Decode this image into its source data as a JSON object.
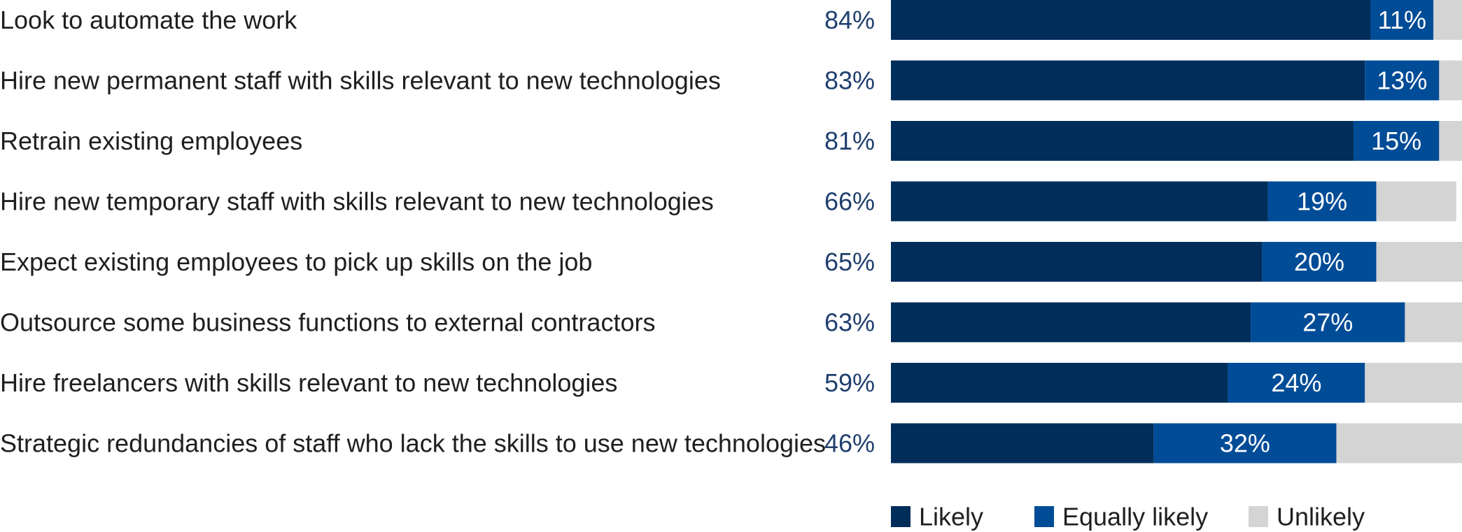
{
  "chart_data": {
    "type": "bar",
    "orientation": "horizontal",
    "stacked": true,
    "title": "",
    "xlabel": "",
    "ylabel": "",
    "xlim": [
      0,
      100
    ],
    "grid": false,
    "legend_position": "bottom",
    "categories": [
      "Look to automate the work",
      "Hire new permanent staff with skills relevant to new technologies",
      "Retrain existing employees",
      "Hire new temporary staff with skills relevant to new technologies",
      "Expect existing employees to pick up skills on the job",
      "Outsource some business functions to external contractors",
      "Hire freelancers with skills relevant to new technologies",
      "Strategic redundancies of staff who lack the skills to use new technologies"
    ],
    "series": [
      {
        "name": "Likely",
        "color": "#002d5a",
        "values": [
          84,
          83,
          81,
          66,
          65,
          63,
          59,
          46
        ],
        "labels": [
          "84%",
          "83%",
          "81%",
          "66%",
          "65%",
          "63%",
          "59%",
          "46%"
        ]
      },
      {
        "name": "Equally likely",
        "color": "#004c97",
        "values": [
          11,
          13,
          15,
          19,
          20,
          27,
          24,
          32
        ],
        "labels": [
          "11%",
          "13%",
          "15%",
          "19%",
          "20%",
          "27%",
          "24%",
          "32%"
        ]
      },
      {
        "name": "Unlikely",
        "color": "#d4d4d4",
        "values": [
          5,
          4,
          4,
          14,
          15,
          10,
          17,
          22
        ]
      }
    ]
  }
}
